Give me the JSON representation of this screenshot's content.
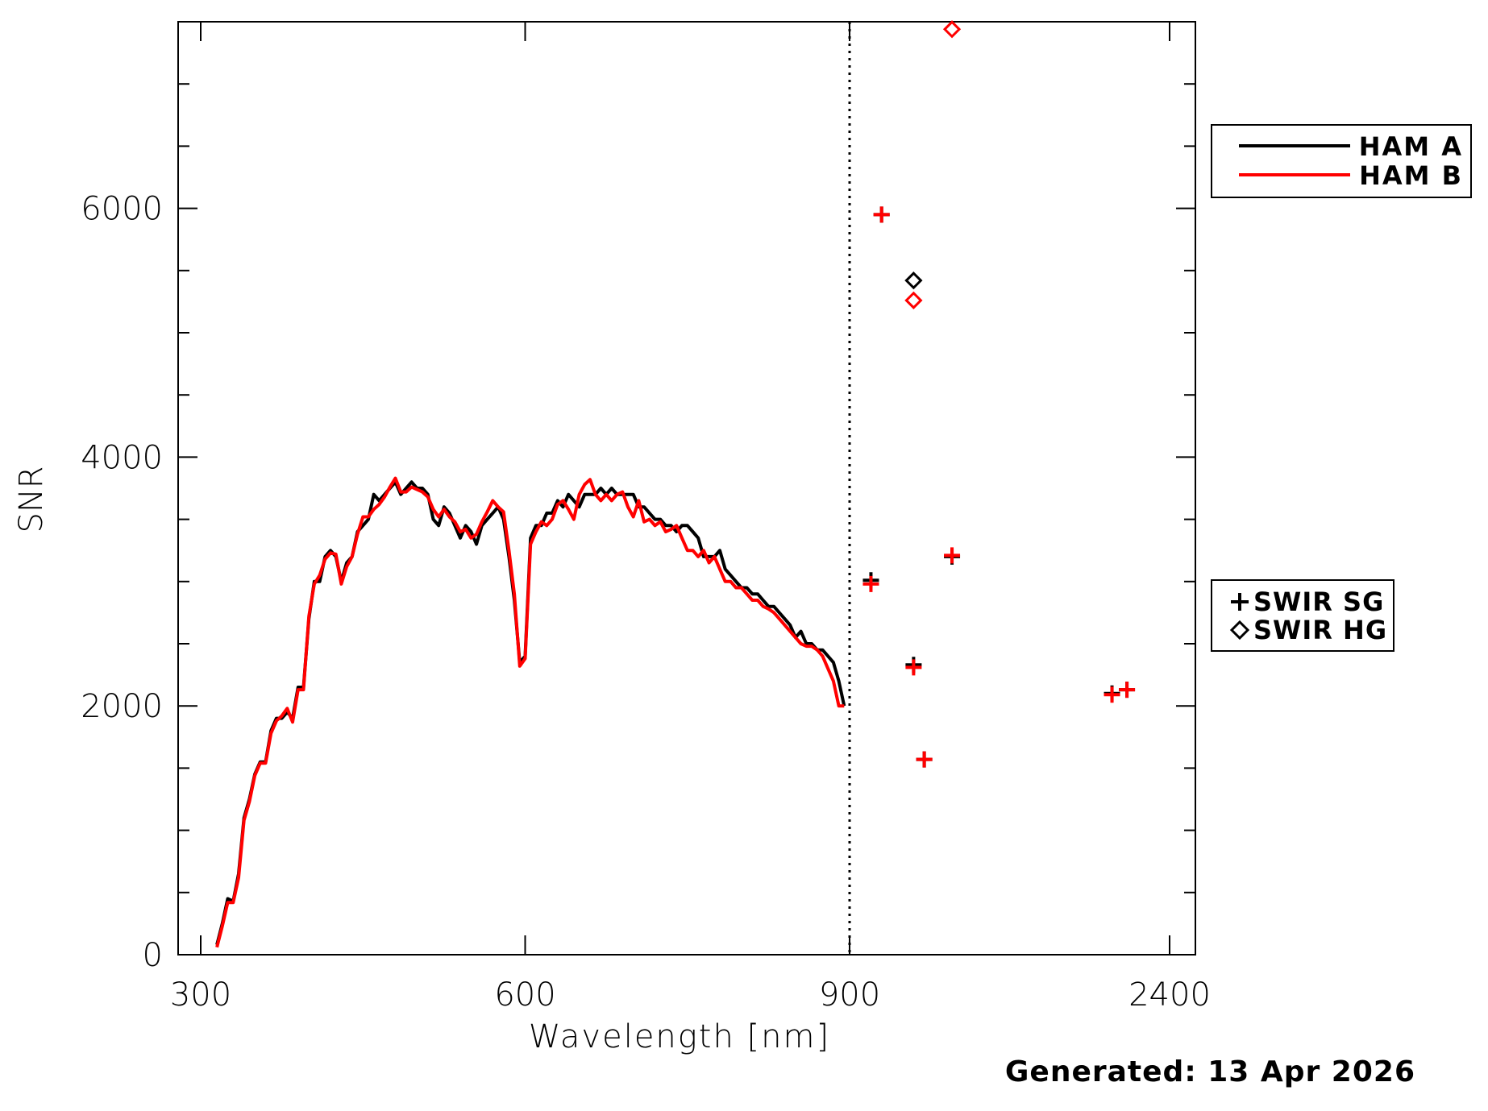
{
  "chart_data": {
    "type": "line",
    "xlabel": "Wavelength [nm]",
    "ylabel": "SNR",
    "xtick_labels": [
      "300",
      "600",
      "900",
      "2400"
    ],
    "ytick_labels": [
      "0",
      "2000",
      "4000",
      "6000"
    ],
    "ylim": [
      0,
      7500
    ],
    "x_axis_note": "piecewise scale: 300-900 nm linear, 900-2400 nm compressed",
    "divider_x": 900,
    "legend_lines_placement": "right, upper",
    "legend_markers_placement": "right, middle",
    "series": [
      {
        "name": "HAM A",
        "color": "#000000",
        "x": [
          315,
          320,
          325,
          330,
          335,
          340,
          345,
          350,
          355,
          360,
          365,
          370,
          375,
          380,
          385,
          390,
          395,
          400,
          405,
          410,
          415,
          420,
          425,
          430,
          435,
          440,
          445,
          450,
          455,
          460,
          465,
          470,
          475,
          480,
          485,
          490,
          495,
          500,
          505,
          510,
          515,
          520,
          525,
          530,
          535,
          540,
          545,
          550,
          555,
          560,
          565,
          570,
          575,
          580,
          585,
          590,
          595,
          600,
          605,
          610,
          615,
          620,
          625,
          630,
          635,
          640,
          645,
          650,
          655,
          660,
          665,
          670,
          675,
          680,
          685,
          690,
          695,
          700,
          705,
          710,
          715,
          720,
          725,
          730,
          735,
          740,
          745,
          750,
          755,
          760,
          765,
          770,
          775,
          780,
          785,
          790,
          795,
          800,
          805,
          810,
          815,
          820,
          825,
          830,
          835,
          840,
          845,
          850,
          855,
          860,
          865,
          870,
          875,
          880,
          885,
          890,
          895
        ],
        "values": [
          80,
          250,
          450,
          430,
          650,
          1100,
          1250,
          1450,
          1550,
          1550,
          1800,
          1900,
          1900,
          1950,
          1900,
          2150,
          2150,
          2700,
          3000,
          3000,
          3200,
          3250,
          3200,
          3000,
          3150,
          3200,
          3400,
          3450,
          3500,
          3700,
          3650,
          3700,
          3750,
          3800,
          3700,
          3750,
          3800,
          3750,
          3750,
          3700,
          3500,
          3450,
          3600,
          3550,
          3450,
          3350,
          3450,
          3400,
          3300,
          3450,
          3500,
          3550,
          3600,
          3500,
          3200,
          2850,
          2350,
          2400,
          3350,
          3450,
          3450,
          3550,
          3550,
          3650,
          3600,
          3700,
          3650,
          3600,
          3700,
          3700,
          3700,
          3750,
          3700,
          3750,
          3700,
          3700,
          3700,
          3700,
          3600,
          3600,
          3550,
          3500,
          3500,
          3450,
          3450,
          3400,
          3450,
          3450,
          3400,
          3350,
          3200,
          3200,
          3200,
          3250,
          3100,
          3050,
          3000,
          2950,
          2950,
          2900,
          2900,
          2850,
          2800,
          2800,
          2750,
          2700,
          2650,
          2550,
          2600,
          2500,
          2500,
          2450,
          2450,
          2400,
          2350,
          2200,
          2000
        ]
      },
      {
        "name": "HAM B",
        "color": "#ff0000",
        "x": [
          315,
          320,
          325,
          330,
          335,
          340,
          345,
          350,
          355,
          360,
          365,
          370,
          375,
          380,
          385,
          390,
          395,
          400,
          405,
          410,
          415,
          420,
          425,
          430,
          435,
          440,
          445,
          450,
          455,
          460,
          465,
          470,
          475,
          480,
          485,
          490,
          495,
          500,
          505,
          510,
          515,
          520,
          525,
          530,
          535,
          540,
          545,
          550,
          555,
          560,
          565,
          570,
          575,
          580,
          585,
          590,
          595,
          600,
          605,
          610,
          615,
          620,
          625,
          630,
          635,
          640,
          645,
          650,
          655,
          660,
          665,
          670,
          675,
          680,
          685,
          690,
          695,
          700,
          705,
          710,
          715,
          720,
          725,
          730,
          735,
          740,
          745,
          750,
          755,
          760,
          765,
          770,
          775,
          780,
          785,
          790,
          795,
          800,
          805,
          810,
          815,
          820,
          825,
          830,
          835,
          840,
          845,
          850,
          855,
          860,
          865,
          870,
          875,
          880,
          885,
          890,
          895
        ],
        "values": [
          60,
          230,
          420,
          420,
          620,
          1080,
          1230,
          1440,
          1540,
          1540,
          1780,
          1880,
          1920,
          1980,
          1870,
          2130,
          2130,
          2720,
          2980,
          3050,
          3180,
          3230,
          3220,
          2980,
          3120,
          3200,
          3380,
          3520,
          3520,
          3580,
          3620,
          3680,
          3760,
          3830,
          3720,
          3720,
          3760,
          3740,
          3720,
          3680,
          3580,
          3520,
          3580,
          3520,
          3480,
          3400,
          3420,
          3350,
          3380,
          3480,
          3560,
          3650,
          3600,
          3560,
          3250,
          2900,
          2320,
          2380,
          3300,
          3400,
          3480,
          3450,
          3500,
          3620,
          3650,
          3580,
          3500,
          3700,
          3780,
          3820,
          3700,
          3650,
          3700,
          3650,
          3700,
          3720,
          3600,
          3520,
          3650,
          3480,
          3500,
          3450,
          3480,
          3400,
          3420,
          3450,
          3350,
          3250,
          3250,
          3200,
          3250,
          3150,
          3200,
          3100,
          3000,
          3000,
          2950,
          2950,
          2900,
          2850,
          2850,
          2800,
          2780,
          2750,
          2700,
          2650,
          2600,
          2550,
          2500,
          2480,
          2480,
          2450,
          2400,
          2300,
          2200,
          2000,
          2000
        ]
      }
    ],
    "markers": [
      {
        "name": "SWIR SG",
        "symbol": "plus",
        "points_a": [
          [
            1000,
            3010
          ],
          [
            1050,
            5950
          ],
          [
            1200,
            2330
          ],
          [
            1250,
            1570
          ],
          [
            1380,
            3200
          ],
          [
            2130,
            2100
          ],
          [
            2200,
            2130
          ]
        ],
        "points_b": [
          [
            1000,
            2980
          ],
          [
            1050,
            5950
          ],
          [
            1200,
            2310
          ],
          [
            1250,
            1570
          ],
          [
            1380,
            3210
          ],
          [
            2130,
            2090
          ],
          [
            2200,
            2130
          ]
        ]
      },
      {
        "name": "SWIR HG",
        "symbol": "diamond",
        "points_a": [
          [
            1200,
            5420
          ],
          [
            1380,
            7520
          ]
        ],
        "points_b": [
          [
            1200,
            5260
          ],
          [
            1380,
            7440
          ]
        ]
      }
    ],
    "footer": "Generated: 13 Apr 2026"
  }
}
